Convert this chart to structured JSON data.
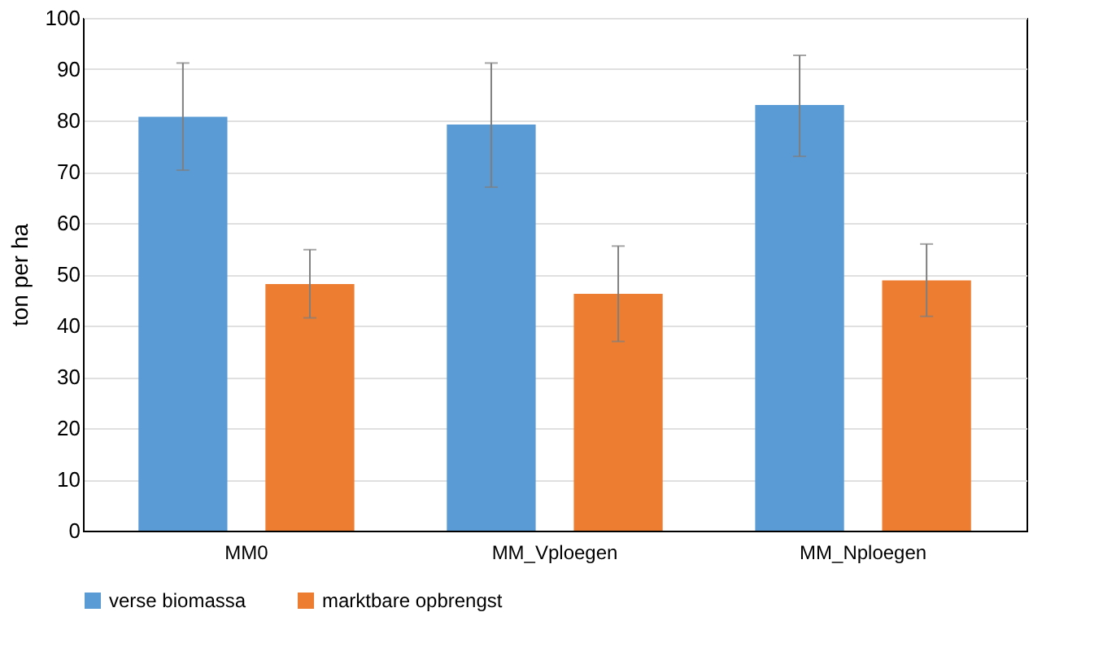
{
  "chart_data": {
    "type": "bar",
    "ylabel": "ton per ha",
    "categories": [
      "MM0",
      "MM_Vploegen",
      "MM_Nploegen"
    ],
    "series": [
      {
        "name": "verse biomassa",
        "color": "#5b9bd5",
        "values": [
          80.7,
          79.2,
          83.0
        ],
        "errors": [
          [
            70.3,
            91.2
          ],
          [
            67.0,
            91.2
          ],
          [
            73.0,
            92.7
          ]
        ]
      },
      {
        "name": "marktbare opbrengst",
        "color": "#ed7d31",
        "values": [
          48.1,
          46.2,
          48.8
        ],
        "errors": [
          [
            41.5,
            54.8
          ],
          [
            36.9,
            55.5
          ],
          [
            41.8,
            55.9
          ]
        ]
      }
    ],
    "ylim": [
      0,
      100
    ],
    "yticks": [
      0,
      10,
      20,
      30,
      40,
      50,
      60,
      70,
      80,
      90,
      100
    ],
    "grid": "y",
    "legend": "bottom"
  }
}
